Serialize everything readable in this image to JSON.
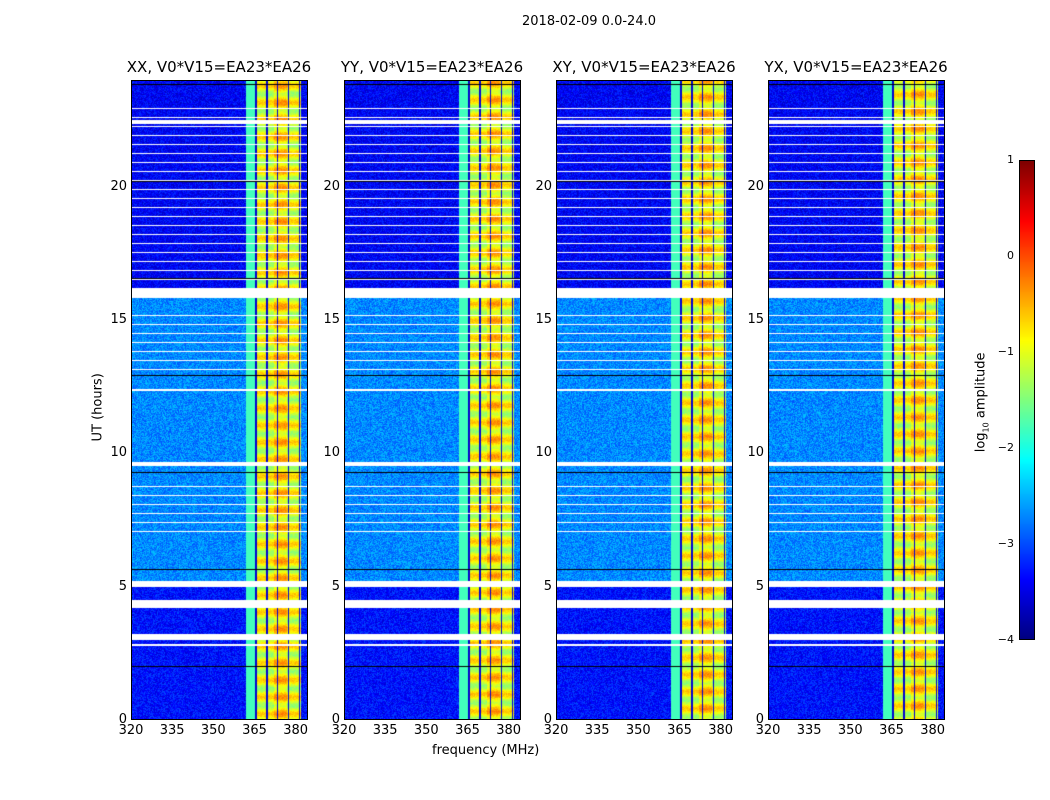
{
  "chart_data": {
    "type": "heatmap",
    "title": "2018-02-09 0.0-24.0",
    "xlabel": "frequency (MHz)",
    "ylabel": "UT (hours)",
    "xlim": [
      320,
      384.5
    ],
    "ylim": [
      0,
      24
    ],
    "xticks": [
      "320",
      "335",
      "350",
      "365",
      "380"
    ],
    "xtick_values": [
      320,
      335,
      350,
      365,
      380
    ],
    "yticks": [
      "0",
      "5",
      "10",
      "15",
      "20"
    ],
    "ytick_values": [
      0,
      5,
      10,
      15,
      20
    ],
    "panels": [
      {
        "title": "XX, V0*V15=EA23*EA26"
      },
      {
        "title": "YY, V0*V15=EA23*EA26"
      },
      {
        "title": "XY, V0*V15=EA23*EA26"
      },
      {
        "title": "YX, V0*V15=EA23*EA26"
      }
    ],
    "band_mhz": [
      362,
      382
    ],
    "band_gaps_mhz": [
      365.5,
      369.5,
      373.5,
      377.5,
      381.5
    ],
    "background_log_amp": {
      "0-5h": -3.3,
      "5-16h": -2.7,
      "16-24h": -3.4
    },
    "band_log_amp": -1.0,
    "flagged_hours": [
      [
        5.0,
        5.2
      ],
      [
        15.85,
        16.2
      ],
      [
        22.4,
        22.55
      ],
      [
        12.35,
        12.45
      ],
      [
        9.55,
        9.7
      ],
      [
        2.75,
        2.85
      ],
      [
        4.2,
        4.5
      ],
      [
        3.0,
        3.2
      ]
    ],
    "colorbar": {
      "label": "log10 amplitude",
      "label_base": "log",
      "label_sub": "10",
      "label_rest": " amplitude",
      "vmin": -4,
      "vmax": 1,
      "ticks": [
        "1",
        "0",
        "−1",
        "−2",
        "−3",
        "−4"
      ],
      "tick_values": [
        1,
        0,
        -1,
        -2,
        -3,
        -4
      ],
      "colormap": "jet"
    }
  }
}
